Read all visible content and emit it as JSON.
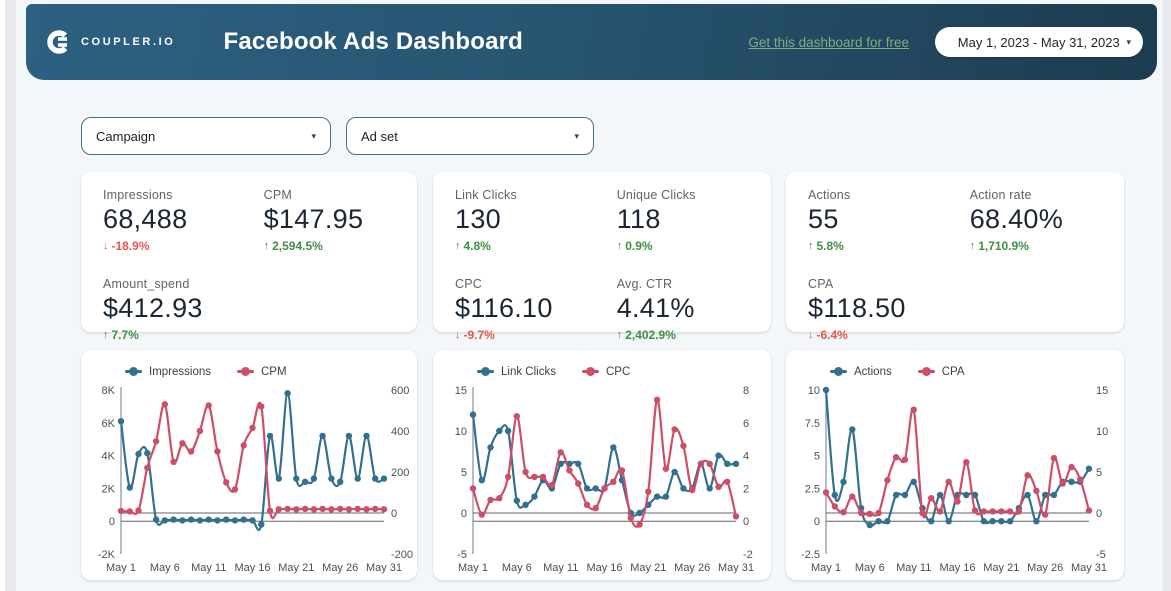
{
  "header": {
    "logo_text": "COUPLER.IO",
    "title": "Facebook Ads Dashboard",
    "link_label": "Get this dashboard for free",
    "date_range": "May 1, 2023 - May 31, 2023"
  },
  "filters": [
    {
      "label": "Campaign"
    },
    {
      "label": "Ad set"
    }
  ],
  "kpi_cards": [
    {
      "metrics": [
        {
          "label": "Impressions",
          "value": "68,488",
          "arrow": "↓",
          "delta": "-18.9%",
          "trend": "negative"
        },
        {
          "label": "CPM",
          "value": "$147.95",
          "arrow": "↑",
          "delta": "2,594.5%",
          "trend": "positive"
        },
        {
          "label": "Amount_spend",
          "value": "$412.93",
          "arrow": "↑",
          "delta": "7.7%",
          "trend": "positive"
        }
      ]
    },
    {
      "metrics": [
        {
          "label": "Link Clicks",
          "value": "130",
          "arrow": "↑",
          "delta": "4.8%",
          "trend": "positive"
        },
        {
          "label": "Unique Clicks",
          "value": "118",
          "arrow": "↑",
          "delta": "0.9%",
          "trend": "positive"
        },
        {
          "label": "CPC",
          "value": "$116.10",
          "arrow": "↓",
          "delta": "-9.7%",
          "trend": "negative"
        },
        {
          "label": "Avg. CTR",
          "value": "4.41%",
          "arrow": "↑",
          "delta": "2,402.9%",
          "trend": "positive"
        }
      ]
    },
    {
      "metrics": [
        {
          "label": "Actions",
          "value": "55",
          "arrow": "↑",
          "delta": "5.8%",
          "trend": "positive"
        },
        {
          "label": "Action rate",
          "value": "68.40%",
          "arrow": "↑",
          "delta": "1,710.9%",
          "trend": "positive"
        },
        {
          "label": "CPA",
          "value": "$118.50",
          "arrow": "↓",
          "delta": "-6.4%",
          "trend": "negative"
        }
      ]
    }
  ],
  "chart_data": [
    {
      "type": "line",
      "title": "Impressions vs CPM by day",
      "x_tick_labels": [
        "May 1",
        "May 6",
        "May 11",
        "May 16",
        "May 21",
        "May 26",
        "May 31"
      ],
      "x_tick_days": [
        1,
        6,
        11,
        16,
        21,
        26,
        31
      ],
      "x_range_days": [
        1,
        31
      ],
      "grid": false,
      "legend_position": "top",
      "left_axis": {
        "min": -2000,
        "max": 8000,
        "ticks": [
          "8K",
          "6K",
          "4K",
          "2K",
          "0",
          "-2K"
        ],
        "tick_values": [
          8000,
          6000,
          4000,
          2000,
          0,
          -2000
        ]
      },
      "right_axis": {
        "min": -200,
        "max": 600,
        "ticks": [
          "600",
          "400",
          "200",
          "0",
          "-200"
        ],
        "tick_values": [
          600,
          400,
          200,
          0,
          -200
        ]
      },
      "series": [
        {
          "name": "Impressions",
          "axis": "left",
          "color": "#31708f",
          "values": [
            6100,
            2050,
            4100,
            4150,
            100,
            50,
            100,
            50,
            100,
            50,
            100,
            50,
            100,
            50,
            100,
            50,
            -200,
            5200,
            2600,
            7800,
            2600,
            2400,
            2600,
            5200,
            2600,
            2400,
            5200,
            2600,
            5200,
            2600,
            2600
          ]
        },
        {
          "name": "CPM",
          "axis": "right",
          "color": "#cc4e67",
          "values": [
            10,
            8,
            12,
            220,
            350,
            530,
            250,
            340,
            300,
            400,
            525,
            300,
            150,
            115,
            330,
            415,
            520,
            10,
            18,
            20,
            18,
            20,
            18,
            20,
            18,
            20,
            18,
            20,
            18,
            20,
            18
          ]
        }
      ]
    },
    {
      "type": "line",
      "title": "Link Clicks vs CPC by day",
      "x_tick_labels": [
        "May 1",
        "May 6",
        "May 11",
        "May 16",
        "May 21",
        "May 26",
        "May 31"
      ],
      "x_tick_days": [
        1,
        6,
        11,
        16,
        21,
        26,
        31
      ],
      "x_range_days": [
        1,
        31
      ],
      "grid": false,
      "legend_position": "top",
      "left_axis": {
        "min": -5,
        "max": 15,
        "ticks": [
          "15",
          "10",
          "5",
          "0",
          "-5"
        ],
        "tick_values": [
          15,
          10,
          5,
          0,
          -5
        ]
      },
      "right_axis": {
        "min": -2,
        "max": 8,
        "ticks": [
          "8",
          "6",
          "4",
          "2",
          "0",
          "-2"
        ],
        "tick_values": [
          8,
          6,
          4,
          2,
          0,
          -2
        ]
      },
      "series": [
        {
          "name": "Link Clicks",
          "axis": "left",
          "color": "#31708f",
          "values": [
            12,
            4,
            8,
            10,
            10,
            1.5,
            1,
            2,
            4,
            3,
            6,
            6,
            6,
            3,
            3,
            3,
            8,
            4,
            0,
            0,
            1,
            2,
            2,
            5,
            3,
            3,
            6,
            3,
            7,
            6,
            6
          ]
        },
        {
          "name": "CPC",
          "axis": "right",
          "color": "#cc4e67",
          "values": [
            2,
            0.4,
            1.3,
            1.4,
            2.7,
            6.4,
            3,
            2.7,
            2.7,
            2.2,
            4.2,
            3.1,
            2.3,
            1,
            0.8,
            2,
            2.4,
            3.1,
            0.2,
            -0.2,
            1.8,
            7.4,
            3.2,
            5.6,
            4.6,
            1.9,
            3.5,
            3.5,
            2.1,
            2.4,
            0.3
          ]
        }
      ]
    },
    {
      "type": "line",
      "title": "Actions vs CPA by day",
      "x_tick_labels": [
        "May 1",
        "May 6",
        "May 11",
        "May 16",
        "May 21",
        "May 26",
        "May 31"
      ],
      "x_tick_days": [
        1,
        6,
        11,
        16,
        21,
        26,
        31
      ],
      "x_range_days": [
        1,
        31
      ],
      "grid": false,
      "legend_position": "top",
      "left_axis": {
        "min": -2.5,
        "max": 10,
        "ticks": [
          "10",
          "7.5",
          "5",
          "2.5",
          "0",
          "-2.5"
        ],
        "tick_values": [
          10,
          7.5,
          5,
          2.5,
          0,
          -2.5
        ]
      },
      "right_axis": {
        "min": -5,
        "max": 15,
        "ticks": [
          "15",
          "10",
          "5",
          "0",
          "-5"
        ],
        "tick_values": [
          15,
          10,
          5,
          0,
          -5
        ]
      },
      "series": [
        {
          "name": "Actions",
          "axis": "left",
          "color": "#31708f",
          "values": [
            10,
            2,
            3,
            7,
            1,
            -0.3,
            0,
            0,
            2,
            2,
            3,
            1,
            0,
            2,
            0,
            2,
            2,
            2,
            0,
            0,
            0,
            0,
            1,
            2,
            0,
            2,
            2,
            3,
            3,
            3,
            4
          ]
        },
        {
          "name": "CPA",
          "axis": "right",
          "color": "#cc4e67",
          "values": [
            2.5,
            0.8,
            0.1,
            2,
            0,
            -0.1,
            0,
            4,
            6.8,
            6.5,
            12.6,
            0,
            1.8,
            0.2,
            3.8,
            1.4,
            6.2,
            0.3,
            0.2,
            0.2,
            0.2,
            0.2,
            0.2,
            4.6,
            2.7,
            -0.2,
            6.7,
            3.6,
            5.6,
            4.1,
            0.3
          ]
        }
      ]
    }
  ],
  "colors": {
    "header_gradient_start": "#2d6181",
    "header_gradient_end": "#1d3c50",
    "page_bg": "#f4f7f9",
    "card_bg": "#ffffff",
    "series_blue": "#31708f",
    "series_red": "#cc4e67",
    "positive_delta": "#3d9142",
    "negative_delta": "#e8544e",
    "link_green": "#83ac7c",
    "filter_border": "#41718f",
    "axis_text": "#4a4f54"
  }
}
